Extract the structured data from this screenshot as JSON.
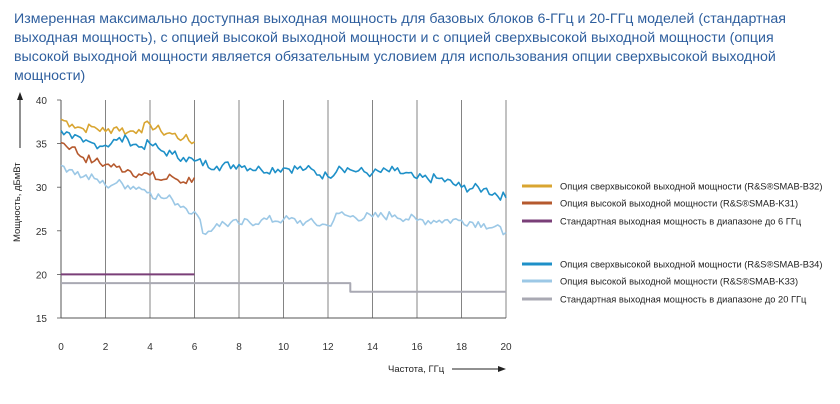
{
  "chart_data": {
    "type": "line",
    "title": "Измеренная максимально доступная выходная мощность для базовых блоков 6-ГГц и 20-ГГц моделей (стандартная выходная мощность), с опцией высокой выходной мощности и с опцией сверхвысокой выходной мощности (опция высокой выходной мощности является обязательным условием для использования опции сверхвысокой выходной мощности)",
    "xlabel": "Частота, ГГц",
    "ylabel": "Мощность, дБмВт",
    "xlim": [
      0,
      20
    ],
    "ylim": [
      15,
      40
    ],
    "xticks": [
      "0",
      "2",
      "4",
      "6",
      "8",
      "10",
      "12",
      "14",
      "16",
      "18",
      "20"
    ],
    "yticks": [
      "15",
      "20",
      "25",
      "30",
      "35",
      "40"
    ],
    "grid": "vertical",
    "legend_position": "right",
    "series": [
      {
        "name": "Опция сверхвысокой выходной мощности (R&S®SMAB-B32)",
        "color": "#d9a531",
        "x": [
          0,
          0.5,
          1,
          1.5,
          2,
          2.5,
          3,
          3.5,
          4,
          4.5,
          5,
          5.5,
          6
        ],
        "y": [
          37.8,
          37.2,
          36.7,
          36.9,
          36.4,
          36.9,
          36.3,
          36.6,
          37.2,
          36.4,
          36.1,
          35.6,
          35.2
        ]
      },
      {
        "name": "Опция высокой выходной мощности (R&S®SMAB-K31)",
        "color": "#b5592e",
        "x": [
          0,
          0.5,
          1,
          1.5,
          2,
          2.5,
          3,
          3.5,
          4,
          4.5,
          5,
          5.5,
          6
        ],
        "y": [
          35.1,
          34.6,
          33.4,
          33.0,
          32.6,
          32.3,
          32.0,
          31.5,
          31.4,
          30.8,
          31.2,
          30.6,
          31.1
        ]
      },
      {
        "name": "Стандартная выходная мощность в диапазоне до 6 ГГц",
        "color": "#7a3f78",
        "x": [
          0,
          6
        ],
        "y": [
          20,
          20
        ]
      },
      {
        "name": "Опция сверхвысокой выходной мощности (R&S®SMAB-B34)",
        "color": "#1e90c8",
        "x": [
          0,
          0.5,
          1,
          1.5,
          2,
          2.5,
          3,
          3.5,
          4,
          4.5,
          5,
          5.5,
          6,
          7,
          8,
          9,
          10,
          11,
          12,
          12.5,
          13,
          14,
          15,
          16,
          17,
          18,
          19,
          20
        ],
        "y": [
          36.5,
          35.6,
          35.2,
          35.0,
          34.8,
          35.4,
          35.5,
          34.6,
          35.0,
          34.2,
          33.8,
          33.4,
          33.0,
          32.4,
          32.6,
          32.0,
          32.2,
          32.1,
          31.2,
          32.4,
          32.0,
          31.6,
          31.9,
          31.0,
          31.0,
          30.0,
          29.8,
          28.8
        ]
      },
      {
        "name": "Опция высокой выходной мощности (R&S®SMAB-K33)",
        "color": "#9cc8e6",
        "x": [
          0,
          0.5,
          1,
          1.5,
          2,
          2.5,
          3,
          3.5,
          4,
          4.5,
          5,
          5.5,
          6,
          6.5,
          7,
          8,
          9,
          10,
          11,
          12,
          12.5,
          13,
          14,
          15,
          16,
          17,
          18,
          19,
          20
        ],
        "y": [
          32.5,
          32.0,
          31.2,
          31.0,
          30.2,
          30.5,
          30.2,
          30.0,
          29.4,
          28.8,
          28.6,
          27.8,
          27.2,
          24.6,
          25.8,
          25.8,
          26.2,
          26.3,
          26.0,
          25.6,
          27.0,
          26.6,
          26.6,
          26.8,
          26.2,
          26.2,
          26.2,
          25.8,
          24.8
        ]
      },
      {
        "name": "Стандартная выходная мощность в диапазоне до 20 ГГц",
        "color": "#a9a9b3",
        "x": [
          0,
          13,
          13,
          20
        ],
        "y": [
          19,
          19,
          18,
          18
        ]
      }
    ]
  }
}
